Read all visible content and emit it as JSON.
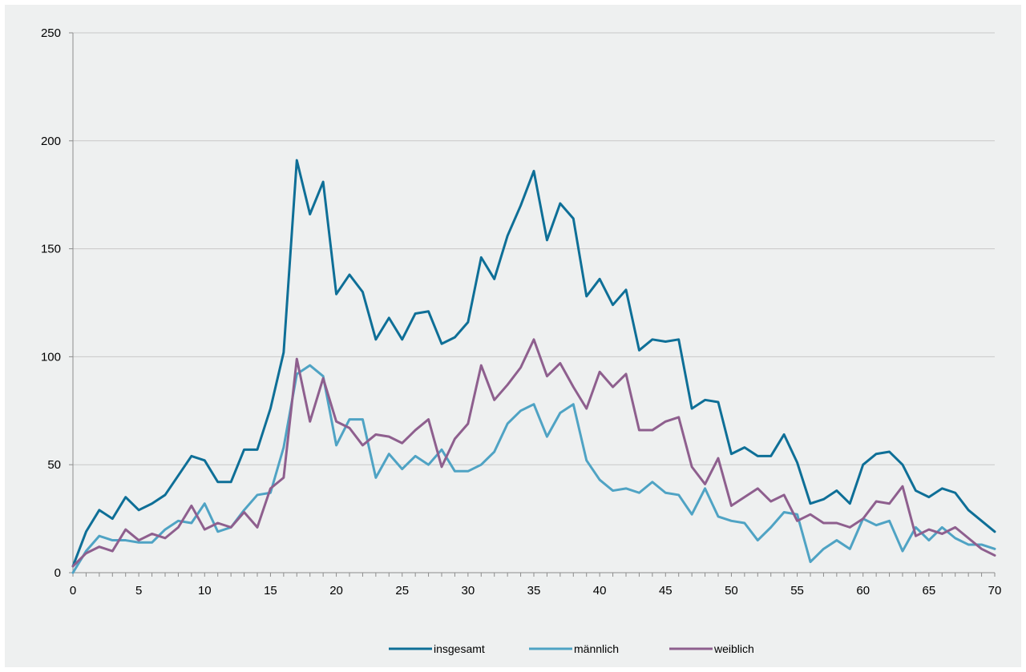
{
  "chart_data": {
    "type": "line",
    "title": "",
    "xlabel": "",
    "ylabel": "",
    "xlim": [
      0,
      70
    ],
    "ylim": [
      0,
      250
    ],
    "y_ticks": [
      0,
      50,
      100,
      150,
      200,
      250
    ],
    "x_ticks": [
      0,
      5,
      10,
      15,
      20,
      25,
      30,
      35,
      40,
      45,
      50,
      55,
      60,
      65,
      70
    ],
    "grid": "horizontal",
    "legend_position": "bottom",
    "x": [
      0,
      1,
      2,
      3,
      4,
      5,
      6,
      7,
      8,
      9,
      10,
      11,
      12,
      13,
      14,
      15,
      16,
      17,
      18,
      19,
      20,
      21,
      22,
      23,
      24,
      25,
      26,
      27,
      28,
      29,
      30,
      31,
      32,
      33,
      34,
      35,
      36,
      37,
      38,
      39,
      40,
      41,
      42,
      43,
      44,
      45,
      46,
      47,
      48,
      49,
      50,
      51,
      52,
      53,
      54,
      55,
      56,
      57,
      58,
      59,
      60,
      61,
      62,
      63,
      64,
      65,
      66,
      67,
      68,
      69,
      70
    ],
    "series": [
      {
        "name": "insgesamt",
        "color": "#0e6f97",
        "values": [
          3,
          19,
          29,
          25,
          35,
          29,
          32,
          36,
          45,
          54,
          52,
          42,
          42,
          57,
          57,
          76,
          102,
          191,
          166,
          181,
          129,
          138,
          130,
          108,
          118,
          108,
          120,
          121,
          106,
          109,
          116,
          146,
          136,
          156,
          170,
          186,
          154,
          171,
          164,
          128,
          136,
          124,
          131,
          103,
          108,
          107,
          108,
          76,
          80,
          79,
          55,
          58,
          54,
          54,
          64,
          51,
          32,
          34,
          38,
          32,
          50,
          55,
          56,
          50,
          38,
          35,
          39,
          37,
          29,
          24,
          19
        ]
      },
      {
        "name": "männlich",
        "color": "#4fa3c4",
        "values": [
          0,
          10,
          17,
          15,
          15,
          14,
          14,
          20,
          24,
          23,
          32,
          19,
          21,
          29,
          36,
          37,
          58,
          92,
          96,
          91,
          59,
          71,
          71,
          44,
          55,
          48,
          54,
          50,
          57,
          47,
          47,
          50,
          56,
          69,
          75,
          78,
          63,
          74,
          78,
          52,
          43,
          38,
          39,
          37,
          42,
          37,
          36,
          27,
          39,
          26,
          24,
          23,
          15,
          21,
          28,
          27,
          5,
          11,
          15,
          11,
          25,
          22,
          24,
          10,
          21,
          15,
          21,
          16,
          13,
          13,
          11
        ]
      },
      {
        "name": "weiblich",
        "color": "#8e5f8e",
        "values": [
          3,
          9,
          12,
          10,
          20,
          15,
          18,
          16,
          21,
          31,
          20,
          23,
          21,
          28,
          21,
          39,
          44,
          99,
          70,
          90,
          70,
          67,
          59,
          64,
          63,
          60,
          66,
          71,
          49,
          62,
          69,
          96,
          80,
          87,
          95,
          108,
          91,
          97,
          86,
          76,
          93,
          86,
          92,
          66,
          66,
          70,
          72,
          49,
          41,
          53,
          31,
          35,
          39,
          33,
          36,
          24,
          27,
          23,
          23,
          21,
          25,
          33,
          32,
          40,
          17,
          20,
          18,
          21,
          16,
          11,
          8
        ]
      }
    ]
  }
}
